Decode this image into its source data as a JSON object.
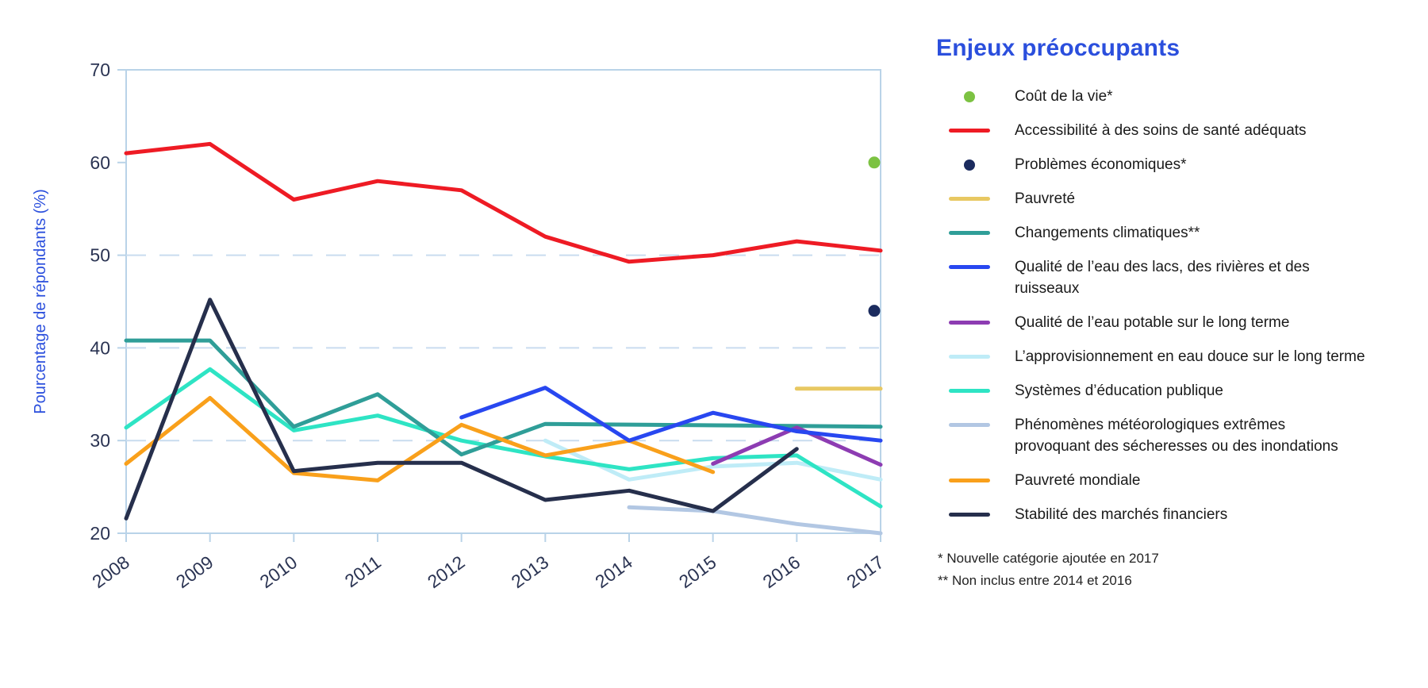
{
  "legend": {
    "title": "Enjeux préoccupants",
    "items": [
      {
        "label": "Coût de la vie*",
        "marker": "dot",
        "color": "#7cc242"
      },
      {
        "label": "Accessibilité à des soins de santé adéquats",
        "marker": "line",
        "color": "#ee1b24"
      },
      {
        "label": "Problèmes économiques*",
        "marker": "dot",
        "color": "#1b2b5e"
      },
      {
        "label": "Pauvreté",
        "marker": "line",
        "color": "#e8c862"
      },
      {
        "label": "Changements climatiques**",
        "marker": "line",
        "color": "#2f9e98"
      },
      {
        "label": "Qualité de l’eau des lacs, des rivières et des\nruisseaux",
        "marker": "line",
        "color": "#2847f0"
      },
      {
        "label": "Qualité de l’eau potable sur le long terme",
        "marker": "line",
        "color": "#8d3cb2"
      },
      {
        "label": "L’approvisionnement en eau douce sur le long terme",
        "marker": "line",
        "color": "#bfecf7"
      },
      {
        "label": "Systèmes d’éducation publique",
        "marker": "line",
        "color": "#2ee4c4"
      },
      {
        "label": "Phénomènes météorologiques extrêmes\nprovoquant des sécheresses ou des inondations",
        "marker": "line",
        "color": "#b2c7e3"
      },
      {
        "label": "Pauvreté mondiale",
        "marker": "line",
        "color": "#f9a01b"
      },
      {
        "label": "Stabilité des marchés financiers",
        "marker": "line",
        "color": "#262f4c"
      }
    ],
    "footnotes": [
      "* Nouvelle catégorie ajoutée en 2017",
      "** Non inclus entre 2014 et 2016"
    ]
  },
  "chart_data": {
    "type": "line",
    "title": "Enjeux préoccupants",
    "xlabel": "",
    "ylabel": "Pourcentage de répondants (%)",
    "ylim": [
      20,
      70
    ],
    "yticks": [
      20,
      30,
      40,
      50,
      60,
      70
    ],
    "grid_values": [
      30,
      40,
      50
    ],
    "grid_style": "dashed",
    "legend_position": "right",
    "x_categories": [
      2008,
      2009,
      2010,
      2011,
      2012,
      2013,
      2014,
      2015,
      2016,
      2017
    ],
    "series": [
      {
        "name": "Phénomènes météorologiques extrêmes provoquant des sécheresses ou des inondations",
        "color": "#b2c7e3",
        "marker": "line",
        "points": [
          [
            2014,
            22.8
          ],
          [
            2015,
            22.4
          ],
          [
            2016,
            21.0
          ],
          [
            2017,
            20.0
          ]
        ]
      },
      {
        "name": "L’approvisionnement en eau douce sur le long terme",
        "color": "#bfecf7",
        "marker": "line",
        "points": [
          [
            2013,
            30.0
          ],
          [
            2014,
            25.8
          ],
          [
            2015,
            27.2
          ],
          [
            2016,
            27.6
          ],
          [
            2017,
            25.8
          ]
        ]
      },
      {
        "name": "Systèmes d’éducation publique",
        "color": "#2ee4c4",
        "marker": "line",
        "points": [
          [
            2008,
            31.4
          ],
          [
            2009,
            37.7
          ],
          [
            2010,
            31.1
          ],
          [
            2011,
            32.7
          ],
          [
            2012,
            30.0
          ],
          [
            2013,
            28.3
          ],
          [
            2014,
            26.9
          ],
          [
            2015,
            28.1
          ],
          [
            2016,
            28.4
          ],
          [
            2017,
            22.9
          ]
        ]
      },
      {
        "name": "Pauvreté",
        "color": "#e8c862",
        "marker": "line",
        "points": [
          [
            2016,
            35.6
          ],
          [
            2017,
            35.6
          ]
        ]
      },
      {
        "name": "Changements climatiques**",
        "color": "#2f9e98",
        "marker": "line",
        "gap_note": "non inclus 2014-2016, segment droit de 2013 à 2017",
        "points": [
          [
            2008,
            40.8
          ],
          [
            2009,
            40.8
          ],
          [
            2010,
            31.5
          ],
          [
            2011,
            35.0
          ],
          [
            2012,
            28.5
          ],
          [
            2013,
            31.8
          ],
          [
            2017,
            31.5
          ]
        ]
      },
      {
        "name": "Pauvreté mondiale",
        "color": "#f9a01b",
        "marker": "line",
        "points": [
          [
            2008,
            27.5
          ],
          [
            2009,
            34.6
          ],
          [
            2010,
            26.5
          ],
          [
            2011,
            25.7
          ],
          [
            2012,
            31.7
          ],
          [
            2013,
            28.4
          ],
          [
            2014,
            30.0
          ],
          [
            2015,
            26.6
          ]
        ]
      },
      {
        "name": "Stabilité des marchés financiers",
        "color": "#262f4c",
        "marker": "line",
        "points": [
          [
            2008,
            21.6
          ],
          [
            2009,
            45.2
          ],
          [
            2010,
            26.7
          ],
          [
            2011,
            27.6
          ],
          [
            2012,
            27.6
          ],
          [
            2013,
            23.6
          ],
          [
            2014,
            24.6
          ],
          [
            2015,
            22.4
          ],
          [
            2016,
            29.1
          ]
        ]
      },
      {
        "name": "Qualité de l’eau potable sur le long terme",
        "color": "#8d3cb2",
        "marker": "line",
        "points": [
          [
            2015,
            27.5
          ],
          [
            2016,
            31.4
          ],
          [
            2017,
            27.4
          ]
        ]
      },
      {
        "name": "Qualité de l’eau des lacs, des rivières et des ruisseaux",
        "color": "#2847f0",
        "marker": "line",
        "points": [
          [
            2012,
            32.5
          ],
          [
            2013,
            35.7
          ],
          [
            2014,
            30.0
          ],
          [
            2015,
            33.0
          ],
          [
            2016,
            31.0
          ],
          [
            2017,
            30.0
          ]
        ]
      },
      {
        "name": "Accessibilité à des soins de santé adéquats",
        "color": "#ee1b24",
        "marker": "line",
        "points": [
          [
            2008,
            61.0
          ],
          [
            2009,
            62.0
          ],
          [
            2010,
            56.0
          ],
          [
            2011,
            58.0
          ],
          [
            2012,
            57.0
          ],
          [
            2013,
            52.0
          ],
          [
            2014,
            49.3
          ],
          [
            2015,
            50.0
          ],
          [
            2016,
            51.5
          ],
          [
            2017,
            50.5
          ]
        ]
      },
      {
        "name": "Coût de la vie*",
        "color": "#7cc242",
        "marker": "dot",
        "points": [
          [
            2017,
            60.0
          ]
        ]
      },
      {
        "name": "Problèmes économiques*",
        "color": "#1b2b5e",
        "marker": "dot",
        "points": [
          [
            2017,
            44.0
          ]
        ]
      }
    ]
  },
  "style": {
    "accent_blue": "#2b4fdd",
    "axis_text_color": "#2b3453",
    "plot_border_color": "#b9d3e8",
    "grid_color": "#c9dcef",
    "background": "#ffffff"
  }
}
